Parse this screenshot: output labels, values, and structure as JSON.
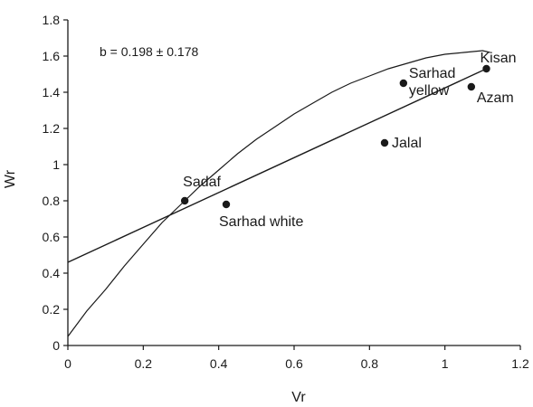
{
  "chart_data": {
    "type": "scatter",
    "title": "",
    "xlabel": "Vr",
    "ylabel": "Wr",
    "xlim": [
      0,
      1.2
    ],
    "ylim": [
      0,
      1.8
    ],
    "x_ticks": [
      "0",
      "0.2",
      "0.4",
      "0.6",
      "0.8",
      "1",
      "1.2"
    ],
    "y_ticks": [
      "0",
      "0.2",
      "0.4",
      "0.6",
      "0.8",
      "1",
      "1.2",
      "1.4",
      "1.6",
      "1.8"
    ],
    "grid": false,
    "annotation": "b = 0.198 ± 0.178",
    "points": [
      {
        "label": "Sadaf",
        "x": 0.31,
        "y": 0.8
      },
      {
        "label": "Sarhad white",
        "x": 0.42,
        "y": 0.78
      },
      {
        "label": "Jalal",
        "x": 0.84,
        "y": 1.12
      },
      {
        "label": "Sarhad yellow",
        "x": 0.89,
        "y": 1.45
      },
      {
        "label": "Azam",
        "x": 1.07,
        "y": 1.43
      },
      {
        "label": "Kisan",
        "x": 1.11,
        "y": 1.53
      }
    ],
    "regression_line": {
      "x": [
        0,
        1.11
      ],
      "y": [
        0.46,
        1.53
      ]
    },
    "limiting_parabola": {
      "x": [
        0,
        0.05,
        0.1,
        0.15,
        0.2,
        0.25,
        0.3,
        0.35,
        0.4,
        0.45,
        0.5,
        0.55,
        0.6,
        0.65,
        0.7,
        0.75,
        0.8,
        0.85,
        0.9,
        0.95,
        1.0,
        1.05,
        1.1,
        1.12
      ],
      "y": [
        0.05,
        0.19,
        0.31,
        0.44,
        0.56,
        0.68,
        0.78,
        0.88,
        0.97,
        1.06,
        1.14,
        1.21,
        1.28,
        1.34,
        1.4,
        1.45,
        1.49,
        1.53,
        1.56,
        1.59,
        1.61,
        1.62,
        1.63,
        1.62
      ]
    }
  }
}
